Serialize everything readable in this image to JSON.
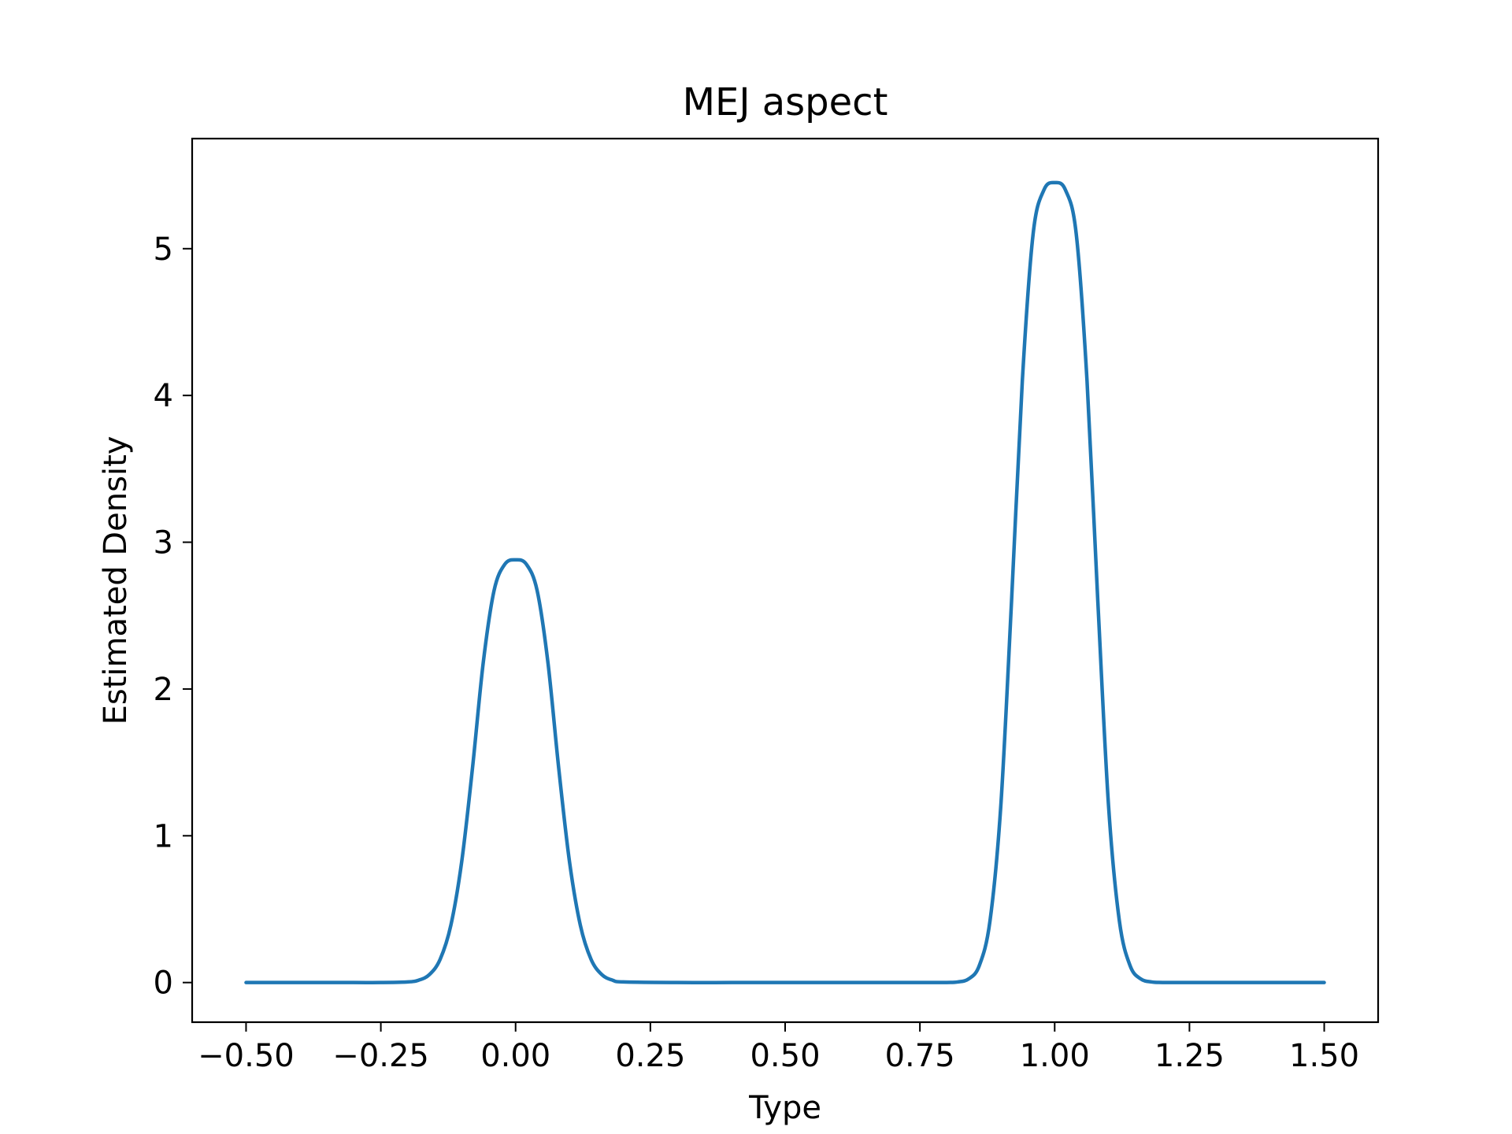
{
  "chart_data": {
    "type": "line",
    "title": "MEJ aspect",
    "xlabel": "Type",
    "ylabel": "Estimated Density",
    "xlim": [
      -0.6,
      1.6
    ],
    "ylim": [
      -0.27,
      5.75
    ],
    "x_ticks": [
      -0.5,
      -0.25,
      0.0,
      0.25,
      0.5,
      0.75,
      1.0,
      1.25,
      1.5
    ],
    "x_tick_labels": [
      "−0.50",
      "−0.25",
      "0.00",
      "0.25",
      "0.50",
      "0.75",
      "1.00",
      "1.25",
      "1.50"
    ],
    "y_ticks": [
      0,
      1,
      2,
      3,
      4,
      5
    ],
    "y_tick_labels": [
      "0",
      "1",
      "2",
      "3",
      "4",
      "5"
    ],
    "grid": false,
    "line_color": "#1f77b4",
    "series": [
      {
        "x": [
          -0.5,
          -0.4,
          -0.3,
          -0.25,
          -0.2,
          -0.18,
          -0.16,
          -0.14,
          -0.12,
          -0.1,
          -0.08,
          -0.06,
          -0.04,
          -0.02,
          0.0,
          0.02,
          0.04,
          0.06,
          0.08,
          0.1,
          0.12,
          0.14,
          0.16,
          0.18,
          0.2,
          0.3,
          0.4,
          0.5,
          0.6,
          0.7,
          0.75,
          0.8,
          0.82,
          0.84,
          0.86,
          0.88,
          0.9,
          0.92,
          0.94,
          0.96,
          0.98,
          1.0,
          1.02,
          1.04,
          1.06,
          1.08,
          1.1,
          1.12,
          1.14,
          1.16,
          1.18,
          1.2,
          1.25,
          1.3,
          1.4,
          1.5
        ],
        "y": [
          0.0,
          0.0,
          0.0,
          0.0,
          0.004,
          0.016,
          0.054,
          0.158,
          0.392,
          0.823,
          1.46,
          2.18,
          2.67,
          2.85,
          2.88,
          2.85,
          2.67,
          2.18,
          1.46,
          0.823,
          0.392,
          0.158,
          0.054,
          0.016,
          0.004,
          0.0,
          0.0,
          0.0,
          0.0,
          0.0,
          0.0,
          0.0005,
          0.004,
          0.024,
          0.114,
          0.42,
          1.2,
          2.6,
          4.1,
          5.1,
          5.4,
          5.45,
          5.4,
          5.1,
          4.1,
          2.6,
          1.2,
          0.42,
          0.114,
          0.024,
          0.004,
          0.0005,
          0.0,
          0.0,
          0.0,
          0.0
        ]
      }
    ]
  }
}
